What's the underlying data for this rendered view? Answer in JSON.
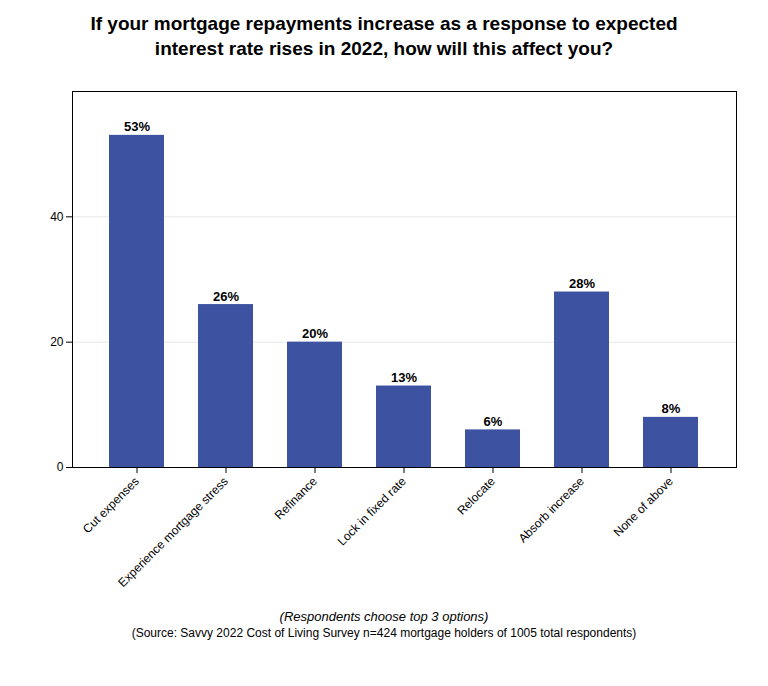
{
  "chart_data": {
    "type": "bar",
    "title": "If your mortgage repayments increase as a response to expected\ninterest rate rises in 2022, how will this affect you?",
    "categories": [
      "Cut expenses",
      "Experience mortgage stress",
      "Refinance",
      "Lock in fixed rate",
      "Relocate",
      "Absorb increase",
      "None of above"
    ],
    "values": [
      53,
      26,
      20,
      13,
      6,
      28,
      8
    ],
    "value_labels": [
      "53%",
      "26%",
      "20%",
      "13%",
      "6%",
      "28%",
      "8%"
    ],
    "color": "#3d52a1",
    "ylim": [
      0,
      60
    ],
    "yticks": [
      0,
      20,
      40
    ],
    "grid": true,
    "data_labels": true,
    "footnote": "(Respondents choose top 3 options)",
    "source": "(Source: Savvy 2022 Cost of Living Survey n=424 mortgage holders of 1005 total respondents)"
  }
}
